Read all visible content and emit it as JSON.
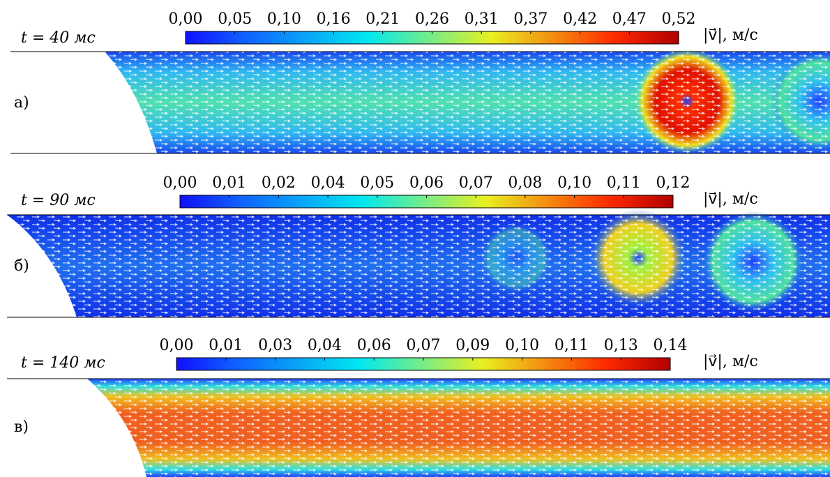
{
  "panels": [
    {
      "time": "t = 40 мс",
      "letter": "а)",
      "colorbar": {
        "ticks": [
          "0,00",
          "0,05",
          "0,10",
          "0,16",
          "0,21",
          "0,26",
          "0,31",
          "0,37",
          "0,42",
          "0,47",
          "0,52"
        ],
        "unit": "|v⃗|, м/с"
      }
    },
    {
      "time": "t = 90 мс",
      "letter": "б)",
      "colorbar": {
        "ticks": [
          "0,00",
          "0,01",
          "0,02",
          "0,04",
          "0,05",
          "0,06",
          "0,07",
          "0,08",
          "0,10",
          "0,11",
          "0,12"
        ],
        "unit": "|v⃗|, м/с"
      }
    },
    {
      "time": "t = 140 мс",
      "letter": "в)",
      "colorbar": {
        "ticks": [
          "0,00",
          "0,01",
          "0,03",
          "0,04",
          "0,06",
          "0,07",
          "0,09",
          "0,10",
          "0,11",
          "0,13",
          "0,14"
        ],
        "unit": "|v⃗|, м/с"
      }
    }
  ]
}
